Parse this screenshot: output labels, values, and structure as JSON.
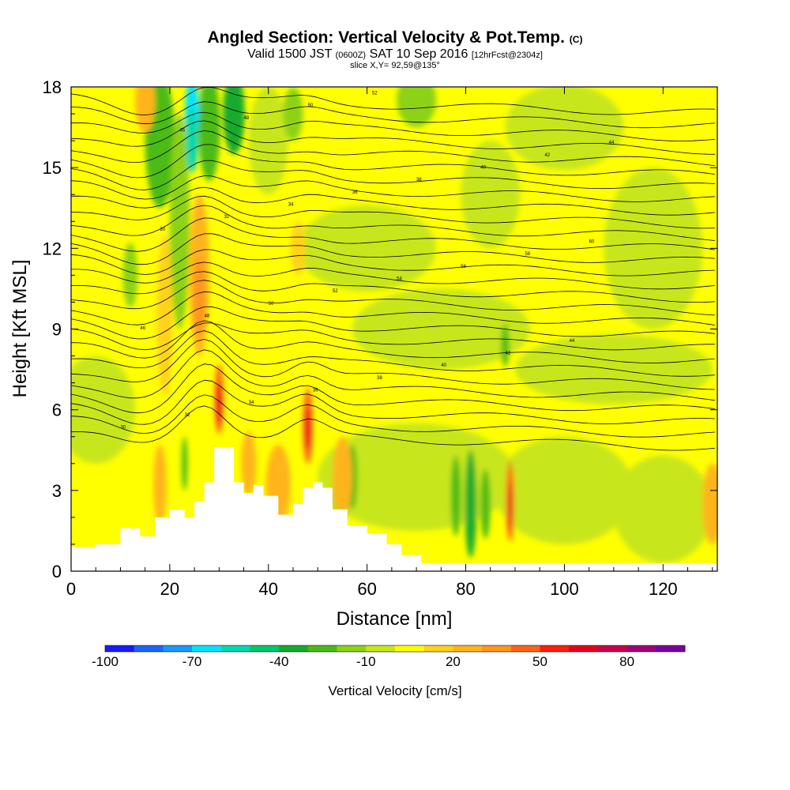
{
  "chart_data": {
    "type": "heatmap",
    "title": "Angled Section: Vertical Velocity & Pot.Temp.",
    "title_unit": "(C)",
    "subtitle": {
      "valid": "Valid 1500 JST",
      "utc": "(0600Z)",
      "date": "SAT 10 Sep 2016",
      "forecast": "[12hrFcst@2304z]"
    },
    "slice_label": "slice X,Y= 92,59@135°",
    "xlabel": "Distance [nm]",
    "ylabel": "Height [Kft MSL]",
    "xlim": [
      0,
      131
    ],
    "ylim": [
      0,
      18
    ],
    "x_ticks": [
      "0",
      "20",
      "40",
      "60",
      "80",
      "100",
      "120"
    ],
    "y_ticks": [
      "0",
      "3",
      "6",
      "9",
      "12",
      "15",
      "18"
    ],
    "colorbar": {
      "label": "Vertical Velocity [cm/s]",
      "tick_labels": [
        "-100",
        "-70",
        "-40",
        "-10",
        "20",
        "50",
        "80"
      ],
      "colors": [
        "#1a1aff",
        "#1a66ff",
        "#1a99ff",
        "#00e5ff",
        "#00d9b0",
        "#00c86e",
        "#16ab2e",
        "#4cbb17",
        "#8cd217",
        "#c8e61e",
        "#ffff00",
        "#ffd21e",
        "#ffb41e",
        "#ff961e",
        "#ff6414",
        "#ff1e0a",
        "#e6001e",
        "#c8004b",
        "#a00078",
        "#7800a0"
      ]
    },
    "isentrope_labels_C": [
      "30",
      "32",
      "34",
      "36",
      "38",
      "40",
      "42",
      "44",
      "46",
      "48",
      "50",
      "52",
      "54",
      "56",
      "58",
      "60"
    ],
    "terrain_peaks_kft": [
      {
        "x": 30,
        "z": 4.6
      },
      {
        "x": 48,
        "z": 3.3
      },
      {
        "x": 36,
        "z": 3.2
      }
    ],
    "updraft_cores": [
      {
        "x": 30,
        "z": 6.5
      },
      {
        "x": 48,
        "z": 5.5
      },
      {
        "x": 89,
        "z": 2.6
      }
    ]
  }
}
